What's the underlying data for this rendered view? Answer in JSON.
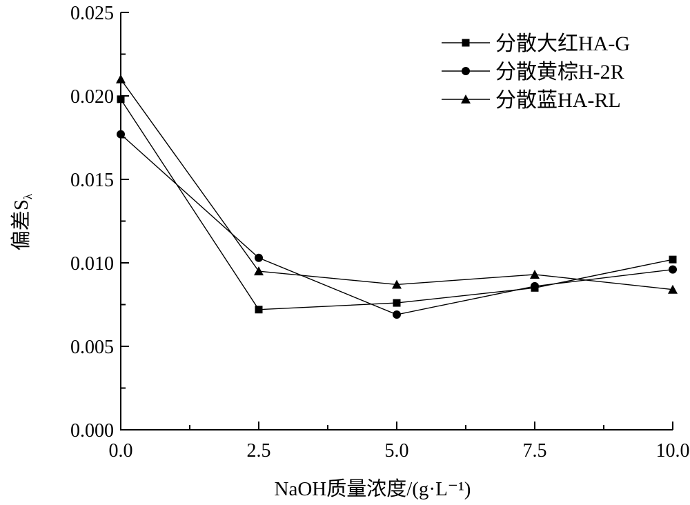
{
  "chart_data": {
    "type": "line",
    "title": "",
    "xlabel": "NaOH质量浓度/(g·L⁻¹)",
    "ylabel": "偏差S",
    "ylabel_sub": "λ",
    "xlim": [
      0,
      10
    ],
    "ylim": [
      0,
      0.025
    ],
    "x_ticks": [
      0,
      2.5,
      5,
      7.5,
      10
    ],
    "x_tick_labels": [
      "0.0",
      "2.5",
      "5.0",
      "7.5",
      "10.0"
    ],
    "y_ticks": [
      0,
      0.005,
      0.01,
      0.015,
      0.02,
      0.025
    ],
    "y_tick_labels": [
      "0.000",
      "0.005",
      "0.010",
      "0.015",
      "0.020",
      "0.025"
    ],
    "legend_position": "top-right",
    "grid": false,
    "x": [
      0,
      2.5,
      5,
      7.5,
      10
    ],
    "series": [
      {
        "name": "分散大红HA-G",
        "marker": "square",
        "values": [
          0.0198,
          0.0072,
          0.0076,
          0.0085,
          0.0102
        ]
      },
      {
        "name": "分散黄棕H-2R",
        "marker": "circle",
        "values": [
          0.0177,
          0.0103,
          0.0069,
          0.0086,
          0.0096
        ]
      },
      {
        "name": "分散蓝HA-RL",
        "marker": "triangle",
        "values": [
          0.021,
          0.0095,
          0.0087,
          0.0093,
          0.0084
        ]
      }
    ]
  }
}
